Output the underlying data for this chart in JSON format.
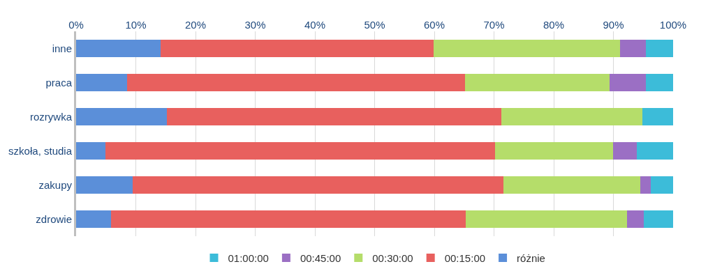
{
  "chart_data": {
    "type": "bar",
    "orientation": "horizontal",
    "stacked": true,
    "categories": [
      "inne",
      "praca",
      "rozrywka",
      "szkoła, studia",
      "zakupy",
      "zdrowie"
    ],
    "series": [
      {
        "name": "różnie",
        "color": "#5b8fd9",
        "values": [
          14.1,
          8.5,
          15.2,
          4.9,
          9.5,
          5.9
        ]
      },
      {
        "name": "00:15:00",
        "color": "#e8605e",
        "values": [
          45.8,
          56.7,
          56.0,
          65.3,
          62.1,
          59.4
        ]
      },
      {
        "name": "00:30:00",
        "color": "#b5dd6a",
        "values": [
          31.2,
          24.2,
          23.7,
          19.7,
          22.9,
          27.0
        ]
      },
      {
        "name": "00:45:00",
        "color": "#9b6fc4",
        "values": [
          4.3,
          6.0,
          0,
          4.0,
          1.7,
          2.8
        ]
      },
      {
        "name": "01:00:00",
        "color": "#3cbcd9",
        "values": [
          4.6,
          4.6,
          5.1,
          6.1,
          3.8,
          4.9
        ]
      }
    ],
    "xlim": [
      0,
      100
    ],
    "xticks": [
      {
        "value": 0,
        "label": "0%"
      },
      {
        "value": 10,
        "label": "10%"
      },
      {
        "value": 20,
        "label": "20%"
      },
      {
        "value": 30,
        "label": "30%"
      },
      {
        "value": 40,
        "label": "40%"
      },
      {
        "value": 50,
        "label": "50%"
      },
      {
        "value": 60,
        "label": "60%"
      },
      {
        "value": 70,
        "label": "70%"
      },
      {
        "value": 80,
        "label": "80%"
      },
      {
        "value": 90,
        "label": "90%"
      },
      {
        "value": 100,
        "label": "100%"
      }
    ],
    "grid": "x",
    "legend": "bottom"
  }
}
